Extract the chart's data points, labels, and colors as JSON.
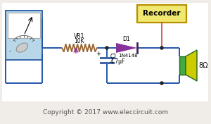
{
  "bg_color": "#f0ede8",
  "wire_color": "#2255aa",
  "component_color": "#222222",
  "recorder_fill": "#f0e870",
  "recorder_border": "#b89000",
  "meter_fill": "#b8d8ea",
  "meter_border": "#3366aa",
  "speaker_rect_fill": "#44aa44",
  "speaker_cone_fill": "#cccc00",
  "diode_fill": "#883399",
  "capacitor_color": "#4466aa",
  "resistor_color": "#996633",
  "arrow_color": "#993399",
  "red_wire_color": "#cc4444",
  "copyright_text": "Copyright © 2017 www.eleccircuit.com",
  "recorder_label": "Recorder",
  "vr1_label1": "VR1",
  "vr1_label2": "10K",
  "d1_label": "D1",
  "d1_part": "1N4148",
  "c1_label": "C1",
  "c1_value": "4.7μF",
  "speaker_label": "8Ω",
  "white_bg": "#ffffff"
}
